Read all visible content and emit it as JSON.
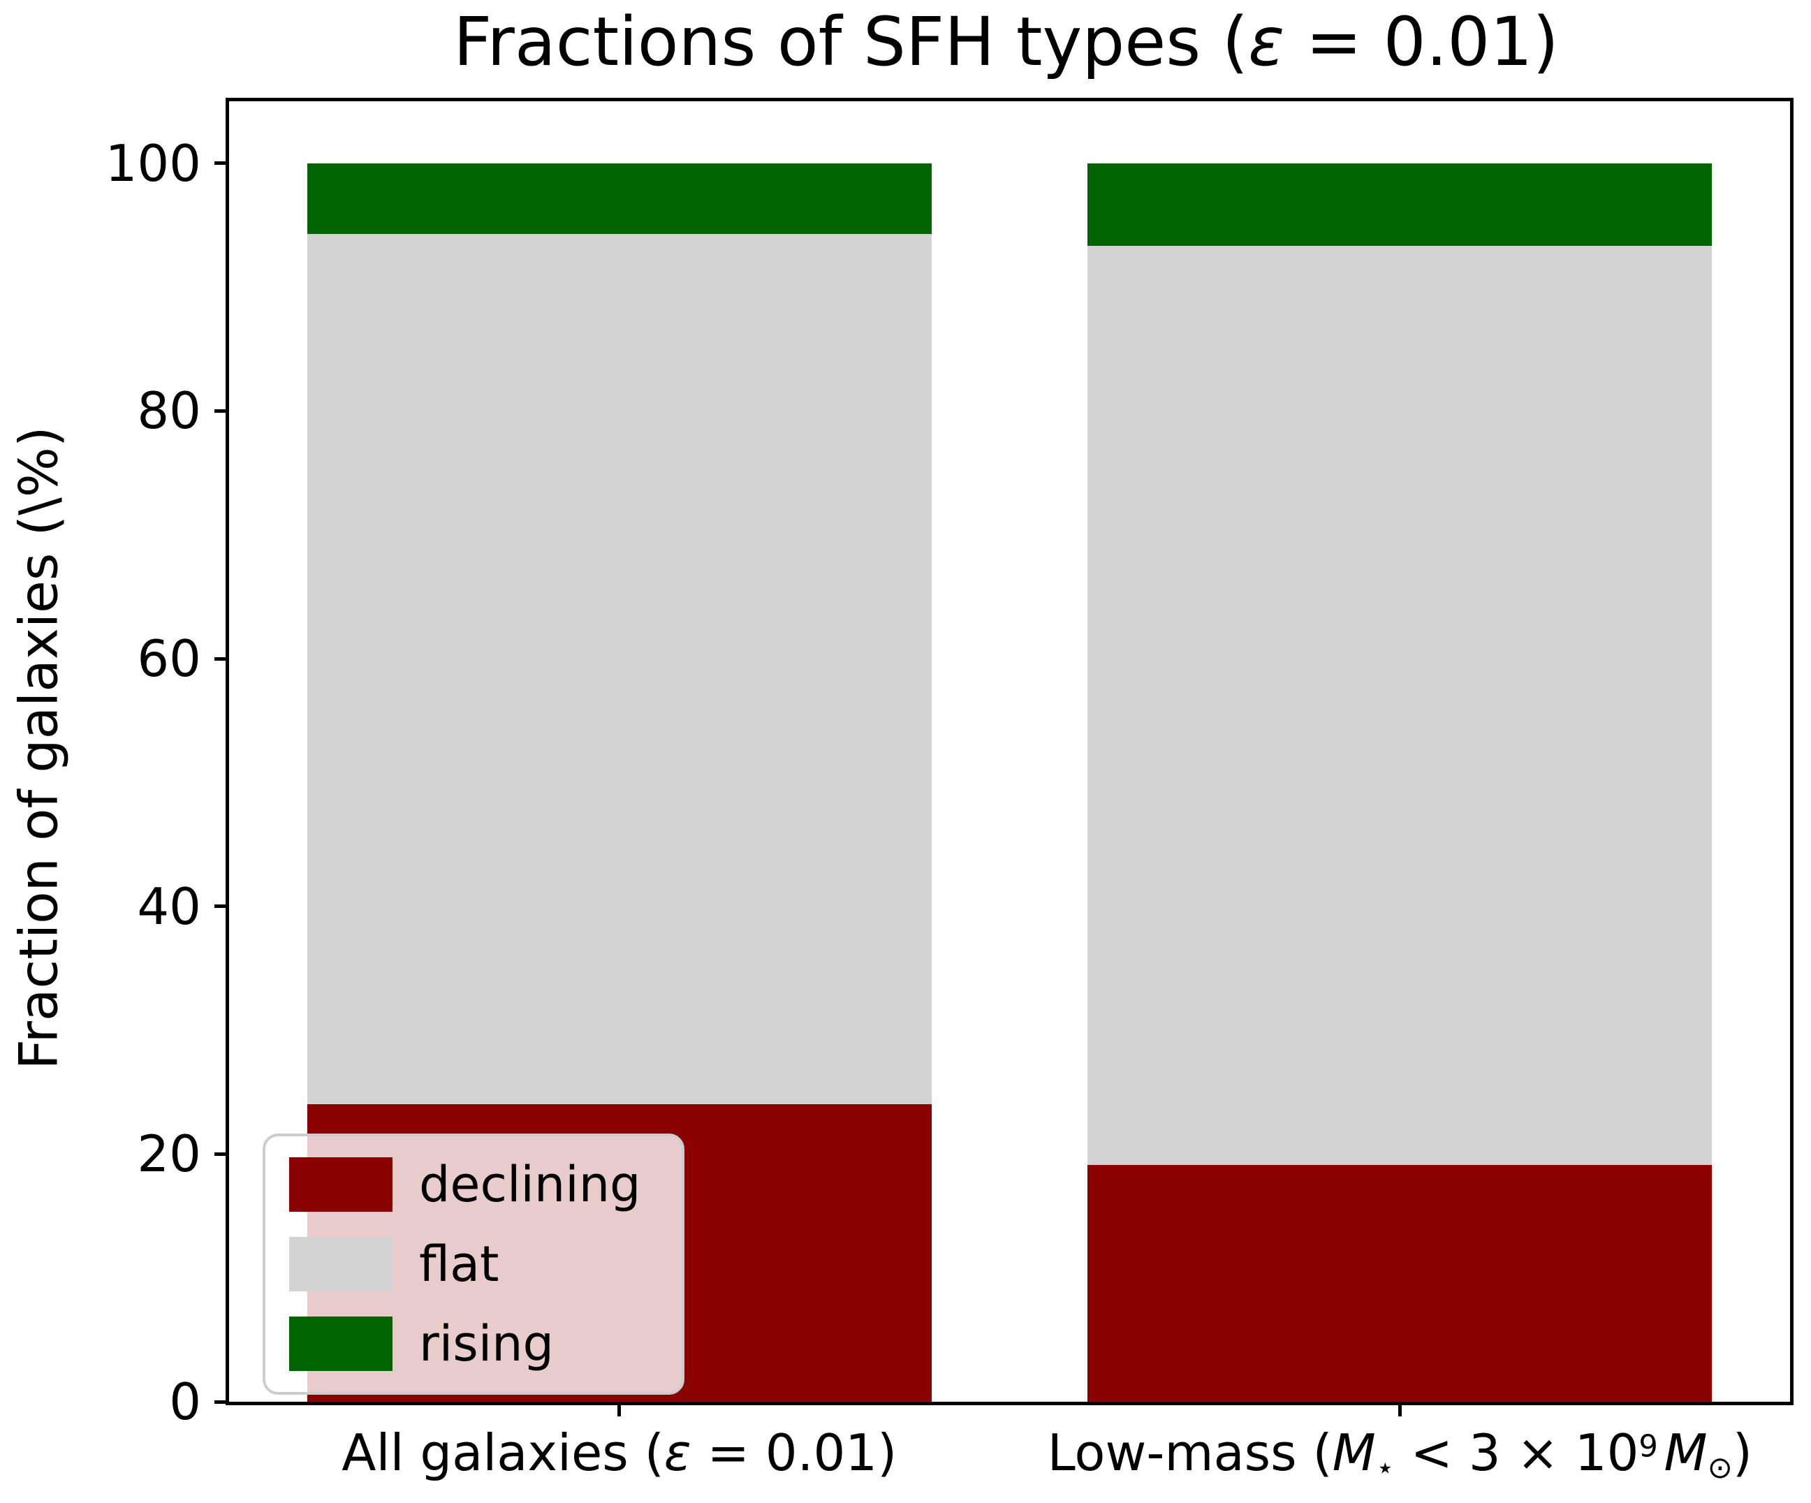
{
  "figure": {
    "title_parts": [
      {
        "t": "Fractions of SFH types ("
      },
      {
        "t": "ε"
      },
      {
        "t": " = 0.01)"
      }
    ],
    "ylabel": "Fraction of galaxies (\\%)"
  },
  "chart_data": {
    "type": "bar",
    "stacked": true,
    "categories": [
      "All galaxies (ε = 0.01)",
      "Low-mass (M⋆ < 3 × 10⁹ M☉)"
    ],
    "category_parts": [
      [
        {
          "t": "All galaxies ("
        },
        {
          "t": "ε"
        },
        {
          "t": " = 0.01)"
        }
      ],
      [
        {
          "t": "Low-mass ("
        },
        {
          "t": "M"
        },
        {
          "t": "⋆"
        },
        {
          "t": " < 3 × 10"
        },
        {
          "t": "9"
        },
        {
          "t": "M"
        },
        {
          "t": "⊙"
        },
        {
          "t": ")"
        }
      ]
    ],
    "series": [
      {
        "name": "declining",
        "color": "#8b0000",
        "values": [
          24.0,
          19.1
        ]
      },
      {
        "name": "flat",
        "color": "#d3d3d3",
        "values": [
          70.3,
          74.2
        ]
      },
      {
        "name": "rising",
        "color": "#006400",
        "values": [
          5.7,
          6.7
        ]
      }
    ],
    "title": "Fractions of SFH types (ε = 0.01)",
    "xlabel": "",
    "ylabel": "Fraction of galaxies (\\%)",
    "yticks": [
      0,
      20,
      40,
      60,
      80,
      100
    ],
    "ylim": [
      0,
      105
    ],
    "grid": false,
    "legend_position": "lower left"
  }
}
